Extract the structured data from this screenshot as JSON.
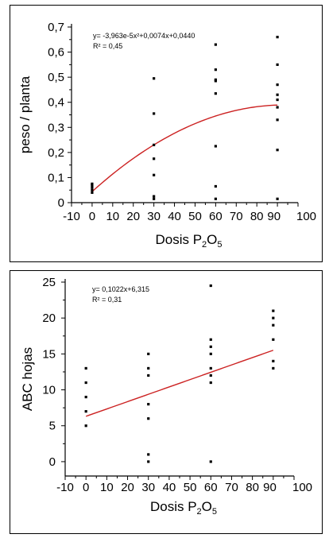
{
  "chart_data": [
    {
      "type": "scatter",
      "x_axis": {
        "label_text": "Dosis P",
        "label_sub1": "2",
        "label_mid": "O",
        "label_sub2": "5",
        "range": [
          -10,
          100
        ],
        "ticks": [
          -10,
          0,
          10,
          20,
          30,
          40,
          50,
          60,
          70,
          80,
          90,
          100
        ],
        "tick_labels": [
          "-10",
          "0",
          "10",
          "20",
          "30",
          "40",
          "50",
          "60",
          "70",
          "80",
          "90",
          "100"
        ]
      },
      "y_axis": {
        "label": "peso / planta",
        "range": [
          0,
          0.7
        ],
        "ticks": [
          0,
          0.1,
          0.2,
          0.3,
          0.4,
          0.5,
          0.6,
          0.7
        ],
        "tick_labels": [
          "0",
          "0,1",
          "0,2",
          "0,3",
          "0,4",
          "0,5",
          "0,6",
          "0,7"
        ]
      },
      "equation": "y= -3,963e-5x²+0,0074x+0,0440",
      "r2": "R² = 0,45",
      "fit": {
        "kind": "quadratic",
        "a": -3.963e-05,
        "b": 0.0074,
        "c": 0.044,
        "x_range": [
          0,
          90
        ],
        "color": "#cc2222"
      },
      "points": [
        {
          "x": 0,
          "y": 0.04
        },
        {
          "x": 0,
          "y": 0.05
        },
        {
          "x": 0,
          "y": 0.06
        },
        {
          "x": 0,
          "y": 0.07
        },
        {
          "x": 0,
          "y": 0.075
        },
        {
          "x": 30,
          "y": 0.015
        },
        {
          "x": 30,
          "y": 0.025
        },
        {
          "x": 30,
          "y": 0.11
        },
        {
          "x": 30,
          "y": 0.175
        },
        {
          "x": 30,
          "y": 0.23
        },
        {
          "x": 30,
          "y": 0.355
        },
        {
          "x": 30,
          "y": 0.495
        },
        {
          "x": 60,
          "y": 0.015
        },
        {
          "x": 60,
          "y": 0.065
        },
        {
          "x": 60,
          "y": 0.225
        },
        {
          "x": 60,
          "y": 0.435
        },
        {
          "x": 60,
          "y": 0.485
        },
        {
          "x": 60,
          "y": 0.49
        },
        {
          "x": 60,
          "y": 0.53
        },
        {
          "x": 60,
          "y": 0.63
        },
        {
          "x": 90,
          "y": 0.015
        },
        {
          "x": 90,
          "y": 0.21
        },
        {
          "x": 90,
          "y": 0.33
        },
        {
          "x": 90,
          "y": 0.38
        },
        {
          "x": 90,
          "y": 0.41
        },
        {
          "x": 90,
          "y": 0.43
        },
        {
          "x": 90,
          "y": 0.47
        },
        {
          "x": 90,
          "y": 0.55
        },
        {
          "x": 90,
          "y": 0.66
        }
      ],
      "grid": false
    },
    {
      "type": "scatter",
      "x_axis": {
        "label_text": "Dosis P",
        "label_sub1": "2",
        "label_mid": "O",
        "label_sub2": "5",
        "range": [
          -10,
          100
        ],
        "ticks": [
          -10,
          0,
          10,
          20,
          30,
          40,
          50,
          60,
          70,
          80,
          90,
          100
        ],
        "tick_labels": [
          "-10",
          "0",
          "10",
          "20",
          "30",
          "40",
          "50",
          "60",
          "70",
          "80",
          "90",
          "100"
        ]
      },
      "y_axis": {
        "label": "ABC hojas",
        "range": [
          -2,
          25
        ],
        "ticks": [
          0,
          5,
          10,
          15,
          20,
          25
        ],
        "tick_labels": [
          "0",
          "5",
          "10",
          "15",
          "20",
          "25"
        ]
      },
      "equation": "y= 0,1022x+6,315",
      "r2": "R² = 0,31",
      "fit": {
        "kind": "linear",
        "a": 0,
        "b": 0.1022,
        "c": 6.315,
        "x_range": [
          0,
          90
        ],
        "color": "#cc2222"
      },
      "points": [
        {
          "x": 0,
          "y": 5
        },
        {
          "x": 0,
          "y": 7
        },
        {
          "x": 0,
          "y": 9
        },
        {
          "x": 0,
          "y": 11
        },
        {
          "x": 0,
          "y": 13
        },
        {
          "x": 30,
          "y": 0
        },
        {
          "x": 30,
          "y": 1
        },
        {
          "x": 30,
          "y": 6
        },
        {
          "x": 30,
          "y": 8
        },
        {
          "x": 30,
          "y": 12
        },
        {
          "x": 30,
          "y": 13
        },
        {
          "x": 30,
          "y": 15
        },
        {
          "x": 60,
          "y": 0
        },
        {
          "x": 60,
          "y": 11
        },
        {
          "x": 60,
          "y": 12
        },
        {
          "x": 60,
          "y": 13
        },
        {
          "x": 60,
          "y": 15
        },
        {
          "x": 60,
          "y": 16
        },
        {
          "x": 60,
          "y": 17
        },
        {
          "x": 60,
          "y": 24.5
        },
        {
          "x": 90,
          "y": 13
        },
        {
          "x": 90,
          "y": 14
        },
        {
          "x": 90,
          "y": 17
        },
        {
          "x": 90,
          "y": 19
        },
        {
          "x": 90,
          "y": 20
        },
        {
          "x": 90,
          "y": 21
        }
      ],
      "grid": false
    }
  ]
}
